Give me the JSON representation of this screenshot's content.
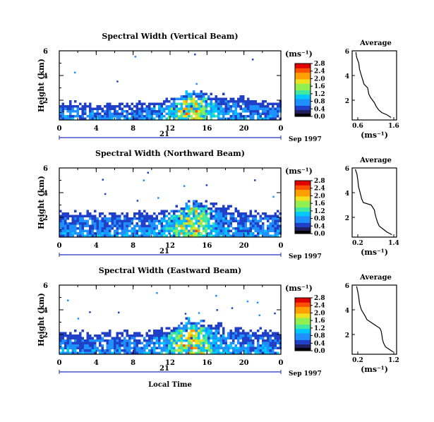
{
  "figure": {
    "date_label": "Sep 1997",
    "day_label": "21",
    "xlabel": "Local Time",
    "ylabel": "Height (km)",
    "unit_label": "(ms⁻¹)",
    "avg_title": "Average",
    "avg_xlabel": "(ms⁻¹)"
  },
  "colors": {
    "colormap": [
      "#202060",
      "#2040c8",
      "#1e90ff",
      "#00c8ff",
      "#40e8a0",
      "#90f050",
      "#f0e020",
      "#ffa000",
      "#ff5000",
      "#e00000"
    ]
  },
  "chart_data": [
    {
      "type": "heatmap",
      "title": "Spectral Width (Vertical Beam)",
      "x_ticks": [
        "0",
        "4",
        "8",
        "12",
        "16",
        "20",
        "0"
      ],
      "xlim": [
        0,
        24
      ],
      "y_ticks": [
        "2",
        "4",
        "6"
      ],
      "ylim": [
        0.4,
        6.0
      ],
      "colorbar_ticks": [
        "0.0",
        "0.4",
        "0.8",
        "1.2",
        "1.6",
        "2.0",
        "2.4",
        "2.8"
      ],
      "colorbar_range": [
        0.0,
        2.8
      ],
      "echo_top_km": [
        [
          0,
          1.9
        ],
        [
          4,
          1.7
        ],
        [
          8,
          1.8
        ],
        [
          12,
          2.1
        ],
        [
          14,
          2.8
        ],
        [
          16,
          2.6
        ],
        [
          20,
          2.2
        ],
        [
          24,
          1.9
        ]
      ],
      "average_profile": {
        "title": "Average",
        "x_ticks": [
          "0.6",
          "1.6"
        ],
        "xlim": [
          0.5,
          1.7
        ],
        "y_ticks": [
          "2",
          "4",
          "6"
        ],
        "height_km": [
          0.6,
          0.8,
          1.0,
          1.2,
          1.5,
          1.8,
          2.0,
          2.2,
          2.5,
          3.0,
          3.3,
          3.5,
          4.0,
          4.5,
          5.0,
          5.5,
          5.9
        ],
        "width_ms": [
          1.55,
          1.45,
          1.3,
          1.22,
          1.15,
          1.1,
          1.05,
          1.0,
          0.95,
          0.92,
          0.82,
          0.8,
          0.75,
          0.7,
          0.68,
          0.62,
          0.6
        ]
      }
    },
    {
      "type": "heatmap",
      "title": "Spectral Width (Northward Beam)",
      "x_ticks": [
        "0",
        "4",
        "8",
        "12",
        "16",
        "20",
        "0"
      ],
      "xlim": [
        0,
        24
      ],
      "y_ticks": [
        "2",
        "4",
        "6"
      ],
      "ylim": [
        0.4,
        6.0
      ],
      "colorbar_ticks": [
        "0.0",
        "0.4",
        "0.8",
        "1.2",
        "1.6",
        "2.0",
        "2.4",
        "2.8"
      ],
      "colorbar_range": [
        0.0,
        2.8
      ],
      "echo_top_km": [
        [
          0,
          2.5
        ],
        [
          4,
          2.4
        ],
        [
          8,
          2.4
        ],
        [
          12,
          2.7
        ],
        [
          14,
          3.3
        ],
        [
          16,
          3.2
        ],
        [
          20,
          2.6
        ],
        [
          24,
          2.4
        ]
      ],
      "average_profile": {
        "title": "Average",
        "x_ticks": [
          "0.2",
          "1.4"
        ],
        "xlim": [
          0.1,
          1.5
        ],
        "y_ticks": [
          "2",
          "4",
          "6"
        ],
        "height_km": [
          0.6,
          0.8,
          1.0,
          1.3,
          1.6,
          2.0,
          2.3,
          2.6,
          3.0,
          3.2,
          3.5,
          4.0,
          4.5,
          5.0,
          5.5,
          5.9
        ],
        "width_ms": [
          1.35,
          1.2,
          1.1,
          0.95,
          0.9,
          0.85,
          0.82,
          0.8,
          0.7,
          0.45,
          0.4,
          0.35,
          0.3,
          0.28,
          0.25,
          0.2
        ]
      }
    },
    {
      "type": "heatmap",
      "title": "Spectral Width (Eastward Beam)",
      "x_ticks": [
        "0",
        "4",
        "8",
        "12",
        "16",
        "20",
        "0"
      ],
      "xlim": [
        0,
        24
      ],
      "y_ticks": [
        "2",
        "4",
        "6"
      ],
      "ylim": [
        0.4,
        6.0
      ],
      "colorbar_ticks": [
        "0.0",
        "0.4",
        "0.8",
        "1.2",
        "1.6",
        "2.0",
        "2.4",
        "2.8"
      ],
      "colorbar_range": [
        0.0,
        2.8
      ],
      "echo_top_km": [
        [
          0,
          2.3
        ],
        [
          4,
          2.2
        ],
        [
          8,
          2.2
        ],
        [
          12,
          2.6
        ],
        [
          14,
          3.3
        ],
        [
          16,
          3.0
        ],
        [
          20,
          2.5
        ],
        [
          24,
          2.3
        ]
      ],
      "average_profile": {
        "title": "Average",
        "x_ticks": [
          "0.2",
          "1.2"
        ],
        "xlim": [
          0.1,
          1.3
        ],
        "y_ticks": [
          "2",
          "4",
          "6"
        ],
        "height_km": [
          0.6,
          0.8,
          1.0,
          1.3,
          1.6,
          2.0,
          2.3,
          2.5,
          2.8,
          3.2,
          3.5,
          4.0,
          4.5,
          5.0,
          5.5,
          5.9
        ],
        "width_ms": [
          1.2,
          1.1,
          1.0,
          0.95,
          0.92,
          0.9,
          0.88,
          0.85,
          0.7,
          0.5,
          0.45,
          0.35,
          0.3,
          0.28,
          0.25,
          0.22
        ]
      }
    }
  ]
}
